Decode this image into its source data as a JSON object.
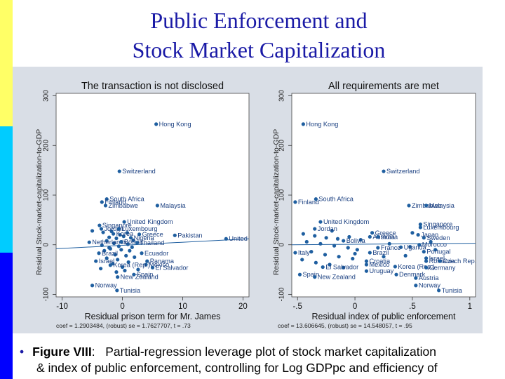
{
  "slide": {
    "title_line1": "Public Enforcement and",
    "title_line2": "Stock Market Capitalization",
    "caption_bullet": "•",
    "caption_figure": "Figure VIII",
    "caption_colon": ":",
    "caption_text1": "Partial-regression leverage plot of stock market capitalization",
    "caption_text2": "& index of public enforcement, controlling for Log GDPpc and efficiency of"
  },
  "colors": {
    "title": "#1a1aa6",
    "points": "#1f5fa0",
    "fit_line": "#1f5fa0",
    "sidebar_yellow": "#ffff66",
    "sidebar_cyan": "#00ccff",
    "sidebar_blue": "#0000ff"
  },
  "chart_data": [
    {
      "type": "scatter",
      "title": "The transaction is not disclosed",
      "xlabel": "Residual prison term for Mr. James",
      "ylabel": "Residual Stock-market-capitalization-to-GDP",
      "xlim": [
        -11,
        21
      ],
      "ylim": [
        -105,
        305
      ],
      "xticks": [
        "-10",
        "0",
        "10",
        "20"
      ],
      "xtick_values": [
        -10,
        0,
        10,
        20
      ],
      "yticks": [
        "-100",
        "0",
        "100",
        "200",
        "300"
      ],
      "ytick_values": [
        -100,
        0,
        100,
        200,
        300
      ],
      "fit": [
        [
          -11,
          -8
        ],
        [
          21,
          12
        ]
      ],
      "footnote": "coef = 1.2903484, (robust) se = 1.7627707, t = .73",
      "labeled_points": [
        {
          "x": 5.6,
          "y": 243,
          "label": "Hong Kong"
        },
        {
          "x": -0.5,
          "y": 148,
          "label": "Switzerland"
        },
        {
          "x": -2.6,
          "y": 92,
          "label": "South Africa"
        },
        {
          "x": -3.4,
          "y": 86,
          "label": "Finland"
        },
        {
          "x": -2.8,
          "y": 79,
          "label": "Zimbabwe"
        },
        {
          "x": 5.8,
          "y": 79,
          "label": "Malaysia"
        },
        {
          "x": 0.3,
          "y": 46,
          "label": "United Kingdom"
        },
        {
          "x": -3.8,
          "y": 39,
          "label": "Singapore"
        },
        {
          "x": -3.5,
          "y": 32,
          "label": "Jordan"
        },
        {
          "x": -0.6,
          "y": 32,
          "label": "Luxembourg"
        },
        {
          "x": -1.5,
          "y": 22,
          "label": "Korea"
        },
        {
          "x": 2.8,
          "y": 21,
          "label": "Greece"
        },
        {
          "x": 8.7,
          "y": 19,
          "label": "Pakistan"
        },
        {
          "x": 17.2,
          "y": 12,
          "label": "United"
        },
        {
          "x": 1.4,
          "y": 14,
          "label": "Nigeria"
        },
        {
          "x": -5.5,
          "y": 5,
          "label": "Netherlands"
        },
        {
          "x": -0.2,
          "y": 6,
          "label": "Bolivia"
        },
        {
          "x": 2.4,
          "y": 4,
          "label": "Thailand"
        },
        {
          "x": 3.2,
          "y": -17,
          "label": "Ecuador"
        },
        {
          "x": -3.9,
          "y": -17,
          "label": "Brazil"
        },
        {
          "x": -4.4,
          "y": -33,
          "label": "Israel"
        },
        {
          "x": 4.1,
          "y": -33,
          "label": "Panama"
        },
        {
          "x": 3.9,
          "y": -40,
          "label": "Mexico"
        },
        {
          "x": -2.0,
          "y": -41,
          "label": "Korea (Rep.)"
        },
        {
          "x": 5.0,
          "y": -46,
          "label": "El Salvador"
        },
        {
          "x": 1.9,
          "y": -60,
          "label": "Spain"
        },
        {
          "x": -0.8,
          "y": -65,
          "label": "New Zealand"
        },
        {
          "x": -5.0,
          "y": -82,
          "label": "Norway"
        },
        {
          "x": -0.9,
          "y": -92,
          "label": "Tunisia"
        }
      ],
      "unlabeled_points": [
        [
          -5,
          28
        ],
        [
          -3.2,
          25
        ],
        [
          -1.8,
          27
        ],
        [
          0.8,
          24
        ],
        [
          -2.2,
          15
        ],
        [
          -1.0,
          13
        ],
        [
          0.2,
          17
        ],
        [
          -2.6,
          8
        ],
        [
          -1.4,
          3
        ],
        [
          0.9,
          1
        ],
        [
          -3.4,
          -1
        ],
        [
          -0.6,
          -3
        ],
        [
          1.6,
          -5
        ],
        [
          -2.0,
          -8
        ],
        [
          -0.2,
          -10
        ],
        [
          1.2,
          -12
        ],
        [
          -3.0,
          -12
        ],
        [
          -1.2,
          -20
        ],
        [
          0.6,
          -22
        ],
        [
          2.0,
          -25
        ],
        [
          -2.6,
          -27
        ],
        [
          -0.8,
          -30
        ],
        [
          1.0,
          -35
        ],
        [
          -1.6,
          -38
        ],
        [
          0.0,
          -45
        ],
        [
          -3.6,
          -48
        ],
        [
          2.6,
          -50
        ],
        [
          -1.0,
          -55
        ],
        [
          0.4,
          -52
        ],
        [
          -2.2,
          -6
        ],
        [
          1.8,
          9
        ],
        [
          -0.4,
          20
        ]
      ]
    },
    {
      "type": "scatter",
      "title": "All requirements are met",
      "xlabel": "Residual index of public enforcement",
      "ylabel": "Residual Stock-market-capitalization-to-GDP",
      "xlim": [
        -0.55,
        1.05
      ],
      "ylim": [
        -105,
        305
      ],
      "xticks": [
        "-.5",
        "0",
        ".5",
        "1"
      ],
      "xtick_values": [
        -0.5,
        0,
        0.5,
        1
      ],
      "yticks": [
        "-100",
        "0",
        "100",
        "200",
        "300"
      ],
      "ytick_values": [
        -100,
        0,
        100,
        200,
        300
      ],
      "fit": [
        [
          -0.55,
          0
        ],
        [
          1.05,
          3
        ]
      ],
      "footnote": "coef = 13.606645, (robust) se = 14.548057, t = .95",
      "labeled_points": [
        {
          "x": -0.45,
          "y": 243,
          "label": "Hong Kong"
        },
        {
          "x": 0.25,
          "y": 148,
          "label": "Switzerland"
        },
        {
          "x": -0.34,
          "y": 92,
          "label": "South Africa"
        },
        {
          "x": -0.52,
          "y": 86,
          "label": "Finland"
        },
        {
          "x": 0.47,
          "y": 79,
          "label": "Zimbabwe"
        },
        {
          "x": 0.62,
          "y": 79,
          "label": "Malaysia"
        },
        {
          "x": -0.3,
          "y": 46,
          "label": "United Kingdom"
        },
        {
          "x": 0.57,
          "y": 41,
          "label": "Singapore"
        },
        {
          "x": 0.57,
          "y": 35,
          "label": "Luxembourg"
        },
        {
          "x": -0.35,
          "y": 32,
          "label": "Jordan"
        },
        {
          "x": 0.15,
          "y": 24,
          "label": "Greece"
        },
        {
          "x": 0.13,
          "y": 16,
          "label": "Australia"
        },
        {
          "x": 0.2,
          "y": 16,
          "label": "India"
        },
        {
          "x": 0.55,
          "y": 20,
          "label": "Japan"
        },
        {
          "x": 0.6,
          "y": 14,
          "label": "Sweden"
        },
        {
          "x": -0.1,
          "y": 8,
          "label": "Bolivia"
        },
        {
          "x": 0.56,
          "y": 0,
          "label": "Morocco"
        },
        {
          "x": 0.4,
          "y": -5,
          "label": "Uganda"
        },
        {
          "x": 0.2,
          "y": -6,
          "label": "France"
        },
        {
          "x": -0.52,
          "y": -16,
          "label": "Italy"
        },
        {
          "x": 0.13,
          "y": -16,
          "label": "Brazil"
        },
        {
          "x": 0.6,
          "y": -14,
          "label": "Portugal"
        },
        {
          "x": 0.62,
          "y": -27,
          "label": "Israel"
        },
        {
          "x": 0.62,
          "y": -33,
          "label": "Romania"
        },
        {
          "x": 0.74,
          "y": -33,
          "label": "Czech Rep."
        },
        {
          "x": 0.1,
          "y": -33,
          "label": "Croatia"
        },
        {
          "x": 0.1,
          "y": -40,
          "label": "Mexico"
        },
        {
          "x": 0.35,
          "y": -44,
          "label": "Korea (Rep.)"
        },
        {
          "x": 0.62,
          "y": -46,
          "label": "Germany"
        },
        {
          "x": -0.28,
          "y": -45,
          "label": "El Salvador"
        },
        {
          "x": 0.1,
          "y": -53,
          "label": "Uruguay"
        },
        {
          "x": -0.48,
          "y": -60,
          "label": "Spain"
        },
        {
          "x": -0.35,
          "y": -65,
          "label": "New Zealand"
        },
        {
          "x": 0.36,
          "y": -60,
          "label": "Denmark"
        },
        {
          "x": 0.53,
          "y": -67,
          "label": "Austria"
        },
        {
          "x": 0.53,
          "y": -82,
          "label": "Norway"
        },
        {
          "x": 0.73,
          "y": -92,
          "label": "Tunisia"
        }
      ],
      "unlabeled_points": [
        [
          -0.45,
          22
        ],
        [
          -0.35,
          18
        ],
        [
          -0.25,
          14
        ],
        [
          -0.15,
          12
        ],
        [
          -0.05,
          16
        ],
        [
          0.05,
          10
        ],
        [
          -0.42,
          6
        ],
        [
          -0.3,
          2
        ],
        [
          -0.18,
          -2
        ],
        [
          -0.06,
          -6
        ],
        [
          0.02,
          -10
        ],
        [
          -0.38,
          -14
        ],
        [
          -0.26,
          -20
        ],
        [
          -0.14,
          -24
        ],
        [
          -0.02,
          -28
        ],
        [
          -0.46,
          -30
        ],
        [
          -0.34,
          -36
        ],
        [
          -0.22,
          -40
        ],
        [
          -0.1,
          -46
        ],
        [
          0.3,
          2
        ],
        [
          0.48,
          -4
        ],
        [
          0.66,
          6
        ],
        [
          0.7,
          -10
        ],
        [
          0.44,
          -22
        ],
        [
          0.5,
          24
        ],
        [
          -0.2,
          28
        ],
        [
          0.0,
          -18
        ],
        [
          0.25,
          -24
        ]
      ]
    }
  ]
}
